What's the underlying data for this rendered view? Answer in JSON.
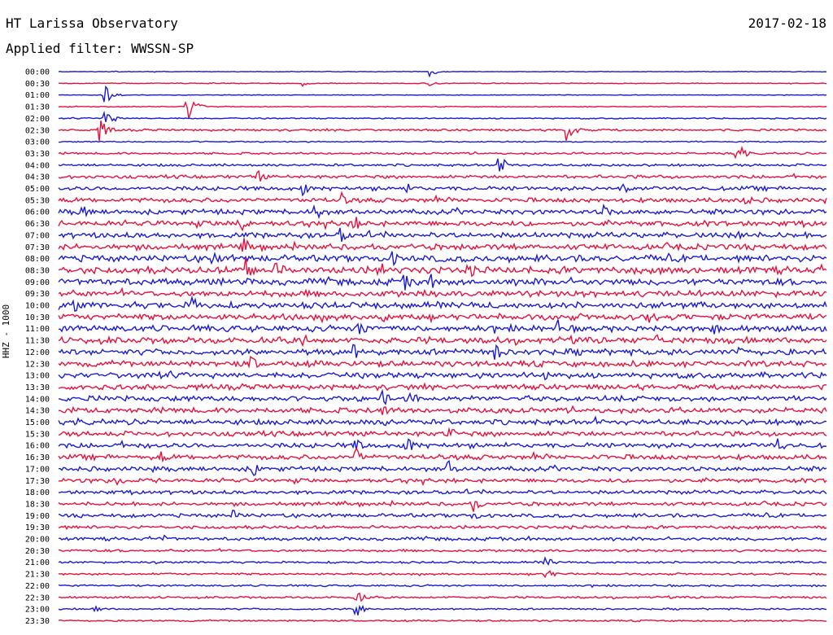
{
  "header": {
    "station": "HT Larissa Observatory",
    "date": "2017-02-18",
    "filter_label": "Applied filter: WWSSN-SP"
  },
  "chart_data": {
    "type": "line",
    "title": "HT Larissa Observatory",
    "subtitle": "Applied filter: WWSSN-SP",
    "date": "2017-02-18",
    "ylabel": "HHZ - 1000",
    "xlabel": "",
    "rows": [
      "00:00",
      "00:30",
      "01:00",
      "01:30",
      "02:00",
      "02:30",
      "03:00",
      "03:30",
      "04:00",
      "04:30",
      "05:00",
      "05:30",
      "06:00",
      "06:30",
      "07:00",
      "07:30",
      "08:00",
      "08:30",
      "09:00",
      "09:30",
      "10:00",
      "10:30",
      "11:00",
      "11:30",
      "12:00",
      "12:30",
      "13:00",
      "13:30",
      "14:00",
      "14:30",
      "15:00",
      "15:30",
      "16:00",
      "16:30",
      "17:00",
      "17:30",
      "18:00",
      "18:30",
      "19:00",
      "19:30",
      "20:00",
      "20:30",
      "21:00",
      "21:30",
      "22:00",
      "22:30",
      "23:00",
      "23:30"
    ],
    "trace_colors": [
      "#1a1ad8",
      "#e8103c"
    ],
    "background_noise": [
      0.3,
      0.4,
      0.3,
      0.4,
      0.6,
      1.0,
      0.6,
      1.0,
      1.2,
      1.6,
      2.0,
      2.2,
      2.4,
      2.6,
      2.6,
      2.8,
      3.2,
      3.4,
      3.2,
      3.0,
      3.0,
      3.0,
      3.0,
      3.0,
      2.9,
      2.8,
      2.8,
      2.6,
      2.6,
      2.6,
      2.6,
      2.4,
      2.4,
      2.4,
      2.2,
      2.0,
      1.8,
      1.8,
      1.8,
      1.6,
      1.6,
      1.2,
      1.0,
      1.0,
      0.9,
      1.0,
      0.8,
      0.8
    ],
    "events": [
      {
        "row": 0,
        "minute": 14.5,
        "amplitude": 6
      },
      {
        "row": 1,
        "minute": 9.5,
        "amplitude": 4
      },
      {
        "row": 1,
        "minute": 14.5,
        "amplitude": 4
      },
      {
        "row": 2,
        "minute": 1.8,
        "amplitude": 12
      },
      {
        "row": 3,
        "minute": 5.0,
        "amplitude": 20
      },
      {
        "row": 4,
        "minute": 1.8,
        "amplitude": 14
      },
      {
        "row": 5,
        "minute": 1.6,
        "amplitude": 16
      },
      {
        "row": 5,
        "minute": 19.8,
        "amplitude": 16
      },
      {
        "row": 7,
        "minute": 26.5,
        "amplitude": 14
      },
      {
        "row": 8,
        "minute": 17.2,
        "amplitude": 14
      },
      {
        "row": 9,
        "minute": 7.8,
        "amplitude": 10
      },
      {
        "row": 10,
        "minute": 9.5,
        "amplitude": 10
      },
      {
        "row": 10,
        "minute": 13.5,
        "amplitude": 10
      },
      {
        "row": 10,
        "minute": 22.0,
        "amplitude": 10
      },
      {
        "row": 11,
        "minute": 11.0,
        "amplitude": 12
      },
      {
        "row": 11,
        "minute": 26.7,
        "amplitude": 12
      },
      {
        "row": 12,
        "minute": 0.9,
        "amplitude": 14
      },
      {
        "row": 12,
        "minute": 10.0,
        "amplitude": 14
      },
      {
        "row": 12,
        "minute": 21.3,
        "amplitude": 12
      },
      {
        "row": 13,
        "minute": 7.0,
        "amplitude": 16
      },
      {
        "row": 13,
        "minute": 11.5,
        "amplitude": 14
      },
      {
        "row": 14,
        "minute": 11.0,
        "amplitude": 12
      },
      {
        "row": 14,
        "minute": 26.5,
        "amplitude": 14
      },
      {
        "row": 15,
        "minute": 7.2,
        "amplitude": 14
      },
      {
        "row": 16,
        "minute": 6.0,
        "amplitude": 12
      },
      {
        "row": 16,
        "minute": 13.0,
        "amplitude": 12
      },
      {
        "row": 17,
        "minute": 7.3,
        "amplitude": 18
      },
      {
        "row": 17,
        "minute": 8.5,
        "amplitude": 16
      },
      {
        "row": 17,
        "minute": 12.5,
        "amplitude": 14
      },
      {
        "row": 17,
        "minute": 16.0,
        "amplitude": 12
      },
      {
        "row": 18,
        "minute": 13.5,
        "amplitude": 12
      },
      {
        "row": 18,
        "minute": 14.5,
        "amplitude": 12
      },
      {
        "row": 20,
        "minute": 0.6,
        "amplitude": 12
      },
      {
        "row": 20,
        "minute": 5.2,
        "amplitude": 14
      },
      {
        "row": 21,
        "minute": 12.6,
        "amplitude": 14
      },
      {
        "row": 21,
        "minute": 23.0,
        "amplitude": 10
      },
      {
        "row": 22,
        "minute": 11.7,
        "amplitude": 14
      },
      {
        "row": 22,
        "minute": 19.5,
        "amplitude": 12
      },
      {
        "row": 22,
        "minute": 25.5,
        "amplitude": 10
      },
      {
        "row": 23,
        "minute": 9.5,
        "amplitude": 10
      },
      {
        "row": 23,
        "minute": 23.3,
        "amplitude": 12
      },
      {
        "row": 24,
        "minute": 11.5,
        "amplitude": 12
      },
      {
        "row": 24,
        "minute": 17.0,
        "amplitude": 14
      },
      {
        "row": 24,
        "minute": 26.5,
        "amplitude": 12
      },
      {
        "row": 25,
        "minute": 7.5,
        "amplitude": 12
      },
      {
        "row": 26,
        "minute": 3.7,
        "amplitude": 12
      },
      {
        "row": 26,
        "minute": 19.0,
        "amplitude": 10
      },
      {
        "row": 28,
        "minute": 12.6,
        "amplitude": 14
      },
      {
        "row": 28,
        "minute": 13.7,
        "amplitude": 12
      },
      {
        "row": 29,
        "minute": 12.6,
        "amplitude": 12
      },
      {
        "row": 30,
        "minute": 12.6,
        "amplitude": 14
      },
      {
        "row": 31,
        "minute": 15.2,
        "amplitude": 12
      },
      {
        "row": 32,
        "minute": 11.6,
        "amplitude": 12
      },
      {
        "row": 32,
        "minute": 13.6,
        "amplitude": 14
      },
      {
        "row": 32,
        "minute": 28.1,
        "amplitude": 12
      },
      {
        "row": 33,
        "minute": 11.6,
        "amplitude": 14
      },
      {
        "row": 33,
        "minute": 4.0,
        "amplitude": 8
      },
      {
        "row": 34,
        "minute": 7.6,
        "amplitude": 12
      },
      {
        "row": 34,
        "minute": 15.2,
        "amplitude": 12
      },
      {
        "row": 35,
        "minute": 2.3,
        "amplitude": 8
      },
      {
        "row": 37,
        "minute": 16.2,
        "amplitude": 10
      },
      {
        "row": 38,
        "minute": 6.8,
        "amplitude": 8
      },
      {
        "row": 38,
        "minute": 16.2,
        "amplitude": 8
      },
      {
        "row": 40,
        "minute": 4.1,
        "amplitude": 6
      },
      {
        "row": 42,
        "minute": 19.0,
        "amplitude": 10
      },
      {
        "row": 43,
        "minute": 19.0,
        "amplitude": 10
      },
      {
        "row": 45,
        "minute": 11.6,
        "amplitude": 10
      },
      {
        "row": 46,
        "minute": 11.6,
        "amplitude": 12
      },
      {
        "row": 46,
        "minute": 1.4,
        "amplitude": 6
      }
    ]
  }
}
